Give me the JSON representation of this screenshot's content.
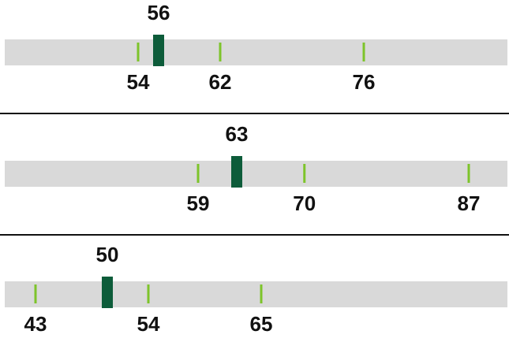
{
  "chart_data": [
    {
      "type": "bullet",
      "value": 56,
      "markers": [
        54,
        62,
        76
      ],
      "xlim": [
        41,
        90
      ],
      "track_color": "#d9d9d9",
      "value_color": "#0d5c3a",
      "marker_color": "#7dc42a"
    },
    {
      "type": "bullet",
      "value": 63,
      "markers": [
        59,
        70,
        87
      ],
      "xlim": [
        39,
        91
      ],
      "track_color": "#d9d9d9",
      "value_color": "#0d5c3a",
      "marker_color": "#7dc42a"
    },
    {
      "type": "bullet",
      "value": 50,
      "markers": [
        43,
        54,
        65
      ],
      "xlim": [
        40,
        89
      ],
      "track_color": "#d9d9d9",
      "value_color": "#0d5c3a",
      "marker_color": "#7dc42a"
    }
  ]
}
